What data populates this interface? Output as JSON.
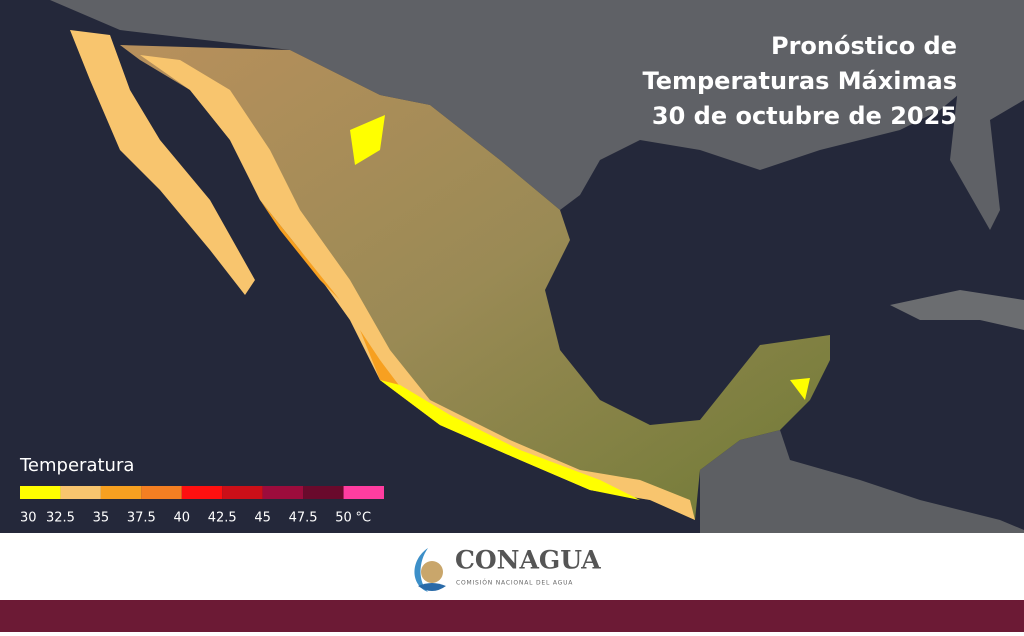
{
  "title": [
    "Pronóstico de",
    "Temperaturas Máximas",
    "30 de octubre  de 2025"
  ],
  "legend": {
    "title": "Temperatura",
    "colors": [
      "#ffff00",
      "#f8c56e",
      "#f7a020",
      "#f47f22",
      "#ff1010",
      "#cc0f18",
      "#9c0c3c",
      "#6a0a2c",
      "#ff3da0"
    ],
    "ticks": [
      30,
      32.5,
      35,
      37.5,
      40,
      42.5,
      45,
      47.5,
      50
    ],
    "unit": "°C"
  },
  "logo": {
    "name": "CONAGUA",
    "subtitle": "COMISIÓN NACIONAL DEL AGUA"
  }
}
